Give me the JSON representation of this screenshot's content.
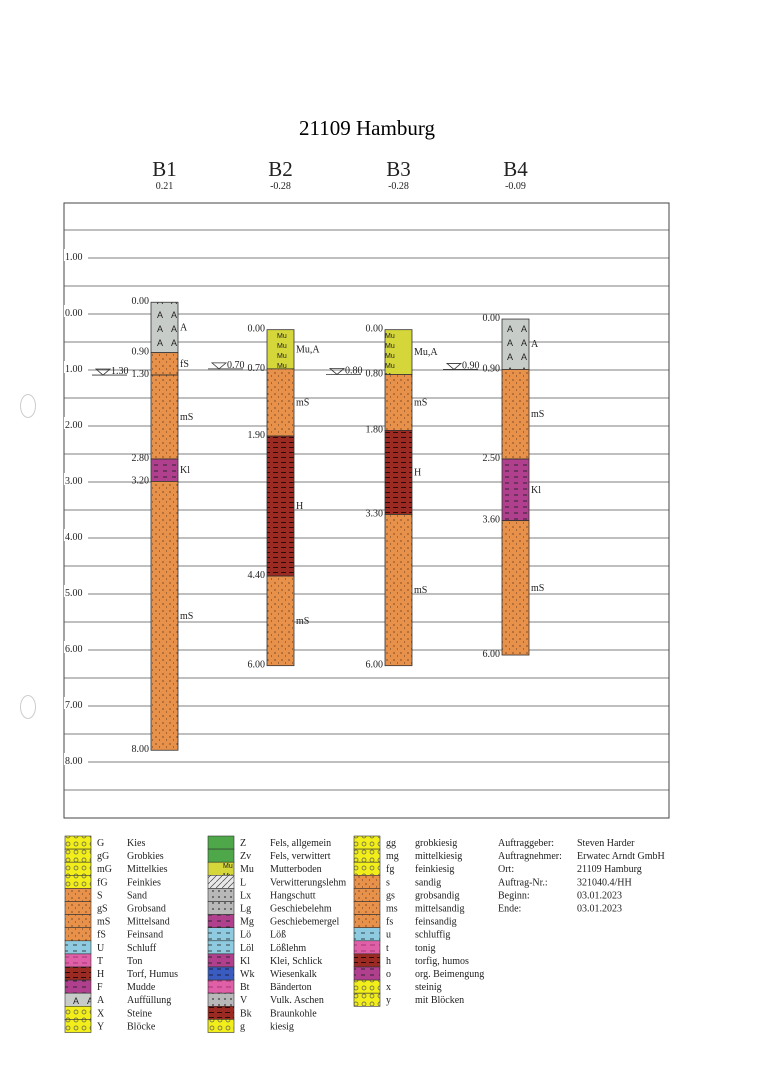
{
  "title": "21109 Hamburg",
  "axis": {
    "labels": [
      "1.00",
      "0.00",
      "1.00",
      "2.00",
      "3.00",
      "4.00",
      "5.00",
      "6.00",
      "7.00",
      "8.00"
    ],
    "label_elevations": [
      1,
      0,
      -1,
      -2,
      -3,
      -4,
      -5,
      -6,
      -7,
      -8
    ]
  },
  "boreholes": [
    {
      "name": "B1",
      "elevation_label": "0.21",
      "elevation": 0.21,
      "water_depth_label": "1.30",
      "water_depth": 1.3,
      "layers": [
        {
          "code": "A",
          "top": 0.0,
          "bottom": 0.9,
          "top_label": "0.00",
          "bottom_label": "0.90"
        },
        {
          "code": "fS",
          "top": 0.9,
          "bottom": 1.3,
          "bottom_label": "1.30"
        },
        {
          "code": "mS",
          "top": 1.3,
          "bottom": 2.8,
          "bottom_label": "2.80"
        },
        {
          "code": "Kl",
          "top": 2.8,
          "bottom": 3.2,
          "bottom_label": "3.20"
        },
        {
          "code": "mS",
          "top": 3.2,
          "bottom": 8.0,
          "bottom_label": "8.00"
        }
      ]
    },
    {
      "name": "B2",
      "elevation_label": "-0.28",
      "elevation": -0.28,
      "water_depth_label": "0.70",
      "water_depth": 0.7,
      "layers": [
        {
          "code": "Mu,A",
          "top": 0.0,
          "bottom": 0.7,
          "top_label": "0.00",
          "bottom_label": "0.70"
        },
        {
          "code": "mS",
          "top": 0.7,
          "bottom": 1.9,
          "bottom_label": "1.90"
        },
        {
          "code": "H",
          "top": 1.9,
          "bottom": 4.4,
          "bottom_label": "4.40"
        },
        {
          "code": "mS",
          "top": 4.4,
          "bottom": 6.0,
          "bottom_label": "6.00"
        }
      ]
    },
    {
      "name": "B3",
      "elevation_label": "-0.28",
      "elevation": -0.28,
      "water_depth_label": "0.80",
      "water_depth": 0.8,
      "layers": [
        {
          "code": "Mu,A",
          "top": 0.0,
          "bottom": 0.8,
          "top_label": "0.00",
          "bottom_label": "0.80"
        },
        {
          "code": "mS",
          "top": 0.8,
          "bottom": 1.8,
          "bottom_label": "1.80"
        },
        {
          "code": "H",
          "top": 1.8,
          "bottom": 3.3,
          "bottom_label": "3.30"
        },
        {
          "code": "mS",
          "top": 3.3,
          "bottom": 6.0,
          "bottom_label": "6.00"
        }
      ]
    },
    {
      "name": "B4",
      "elevation_label": "-0.09",
      "elevation": -0.09,
      "water_depth_label": "0.90",
      "water_depth": 0.9,
      "layers": [
        {
          "code": "A",
          "top": 0.0,
          "bottom": 0.9,
          "top_label": "0.00",
          "bottom_label": "0.90"
        },
        {
          "code": "mS",
          "top": 0.9,
          "bottom": 2.5,
          "bottom_label": "2.50"
        },
        {
          "code": "Kl",
          "top": 2.5,
          "bottom": 3.6,
          "bottom_label": "3.60"
        },
        {
          "code": "mS",
          "top": 3.6,
          "bottom": 6.0,
          "bottom_label": "6.00"
        }
      ]
    }
  ],
  "legend": [
    [
      {
        "code": "G",
        "name": "Kies",
        "pattern": "gravel"
      },
      {
        "code": "gG",
        "name": "Grobkies",
        "pattern": "gravel"
      },
      {
        "code": "mG",
        "name": "Mittelkies",
        "pattern": "gravel"
      },
      {
        "code": "fG",
        "name": "Feinkies",
        "pattern": "gravel"
      },
      {
        "code": "S",
        "name": "Sand",
        "pattern": "sand"
      },
      {
        "code": "gS",
        "name": "Grobsand",
        "pattern": "sand"
      },
      {
        "code": "mS",
        "name": "Mittelsand",
        "pattern": "sand"
      },
      {
        "code": "fS",
        "name": "Feinsand",
        "pattern": "sand"
      },
      {
        "code": "U",
        "name": "Schluff",
        "pattern": "silt"
      },
      {
        "code": "T",
        "name": "Ton",
        "pattern": "clay"
      },
      {
        "code": "H",
        "name": "Torf, Humus",
        "pattern": "peat"
      },
      {
        "code": "F",
        "name": "Mudde",
        "pattern": "mud"
      },
      {
        "code": "A",
        "name": "Auffüllung",
        "pattern": "fill",
        "glyph": "A"
      },
      {
        "code": "X",
        "name": "Steine",
        "pattern": "gravel"
      },
      {
        "code": "Y",
        "name": "Blöcke",
        "pattern": "gravel"
      }
    ],
    [
      {
        "code": "Z",
        "name": "Fels, allgemein",
        "pattern": "rock",
        "glyph": "Z"
      },
      {
        "code": "Zv",
        "name": "Fels, verwittert",
        "pattern": "rock",
        "glyph": "Zv"
      },
      {
        "code": "Mu",
        "name": "Mutterboden",
        "pattern": "topsoil",
        "glyph": "Mu"
      },
      {
        "code": "L",
        "name": "Verwitterungslehm",
        "pattern": "hatch"
      },
      {
        "code": "Lx",
        "name": "Hangschutt",
        "pattern": "grey"
      },
      {
        "code": "Lg",
        "name": "Geschiebelehm",
        "pattern": "grey"
      },
      {
        "code": "Mg",
        "name": "Geschiebemergel",
        "pattern": "mud"
      },
      {
        "code": "Lö",
        "name": "Löß",
        "pattern": "silt"
      },
      {
        "code": "Löl",
        "name": "Lößlehm",
        "pattern": "silt"
      },
      {
        "code": "Kl",
        "name": "Klei, Schlick",
        "pattern": "mud"
      },
      {
        "code": "Wk",
        "name": "Wiesenkalk",
        "pattern": "blue"
      },
      {
        "code": "Bt",
        "name": "Bänderton",
        "pattern": "clay"
      },
      {
        "code": "V",
        "name": "Vulk. Aschen",
        "pattern": "grey"
      },
      {
        "code": "Bk",
        "name": "Braunkohle",
        "pattern": "peat"
      },
      {
        "code": "g",
        "name": "kiesig",
        "pattern": "gravel"
      }
    ],
    [
      {
        "code": "gg",
        "name": "grobkiesig",
        "pattern": "gravel"
      },
      {
        "code": "mg",
        "name": "mittelkiesig",
        "pattern": "gravel"
      },
      {
        "code": "fg",
        "name": "feinkiesig",
        "pattern": "gravel"
      },
      {
        "code": "s",
        "name": "sandig",
        "pattern": "sand"
      },
      {
        "code": "gs",
        "name": "grobsandig",
        "pattern": "sand"
      },
      {
        "code": "ms",
        "name": "mittelsandig",
        "pattern": "sand"
      },
      {
        "code": "fs",
        "name": "feinsandig",
        "pattern": "sand"
      },
      {
        "code": "u",
        "name": "schluffig",
        "pattern": "silt"
      },
      {
        "code": "t",
        "name": "tonig",
        "pattern": "clay"
      },
      {
        "code": "h",
        "name": "torfig, humos",
        "pattern": "peat"
      },
      {
        "code": "o",
        "name": "org. Beimengung",
        "pattern": "mud"
      },
      {
        "code": "x",
        "name": "steinig",
        "pattern": "gravel"
      },
      {
        "code": "y",
        "name": "mit Blöcken",
        "pattern": "gravel"
      }
    ]
  ],
  "info": [
    {
      "label": "Auftraggeber:",
      "value": "Steven Harder"
    },
    {
      "label": "Auftragnehmer:",
      "value": "Erwatec Arndt GmbH"
    },
    {
      "label": "Ort:",
      "value": "21109 Hamburg"
    },
    {
      "label": "Auftrag-Nr.:",
      "value": "321040.4/HH"
    },
    {
      "label": "Beginn:",
      "value": "03.01.2023"
    },
    {
      "label": "Ende:",
      "value": "03.01.2023"
    }
  ],
  "colors": {
    "sand": "#e8914a",
    "fill": "#c8ccc8",
    "topsoil": "#d4d63a",
    "peat": "#9a2a22",
    "mud": "#b0408e",
    "clay": "#e060a8",
    "silt": "#8ecbe0",
    "gravel": "#f2ee1a",
    "rock": "#4ea84a",
    "grey": "#b8b8b8",
    "blue": "#3a5cc0",
    "hatch": "#e0e0e0"
  },
  "soil_pattern_map": {
    "A": "fill",
    "fS": "sand",
    "mS": "sand",
    "Kl": "mud",
    "H": "peat",
    "Mu,A": "topsoil"
  }
}
